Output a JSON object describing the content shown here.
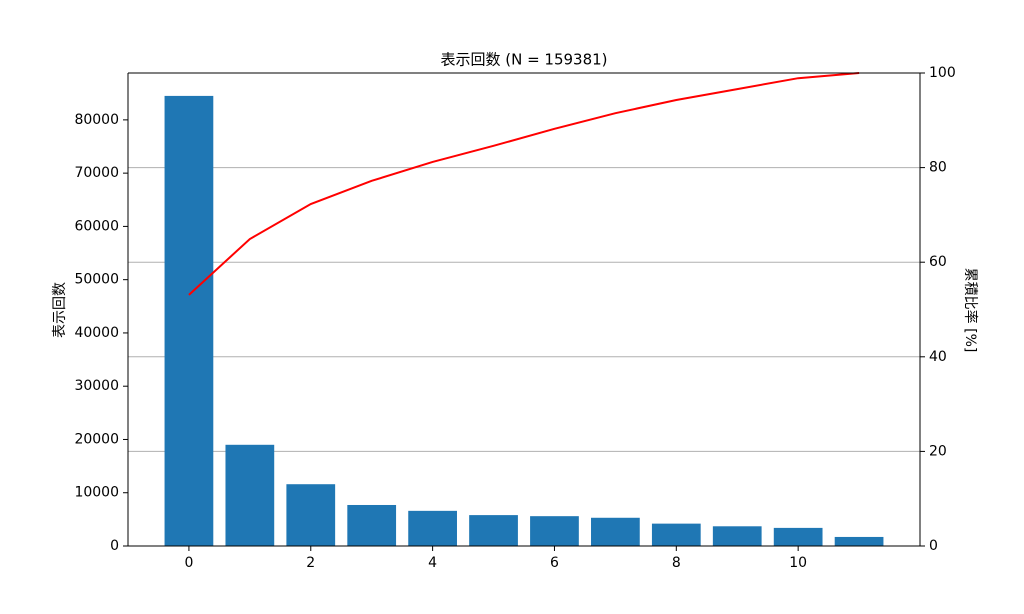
{
  "chart_data": {
    "type": "bar",
    "title": "表示回数 (N = 159381)",
    "ylabel": "表示回数",
    "y2label": "累積比率 [%]",
    "x": [
      0,
      1,
      2,
      3,
      4,
      5,
      6,
      7,
      8,
      9,
      10,
      11
    ],
    "series": [
      {
        "type": "bar",
        "color": "#1f77b4",
        "values": [
          84500,
          19000,
          11600,
          7700,
          6600,
          5800,
          5600,
          5300,
          4200,
          3700,
          3400,
          1700
        ]
      },
      {
        "type": "line",
        "color": "#ff0000",
        "axis": "y2",
        "values": [
          53.1,
          64.9,
          72.3,
          77.2,
          81.2,
          84.6,
          88.2,
          91.5,
          94.3,
          96.6,
          98.9,
          100
        ]
      }
    ],
    "xlim": [
      -1,
      12
    ],
    "xticks": [
      0,
      2,
      4,
      6,
      8,
      10
    ],
    "ylim": [
      0,
      88800
    ],
    "yticks": [
      0,
      10000,
      20000,
      30000,
      40000,
      50000,
      60000,
      70000,
      80000
    ],
    "y2lim": [
      0,
      100
    ],
    "y2ticks": [
      0,
      20,
      40,
      60,
      80,
      100
    ],
    "grid": "y2"
  }
}
